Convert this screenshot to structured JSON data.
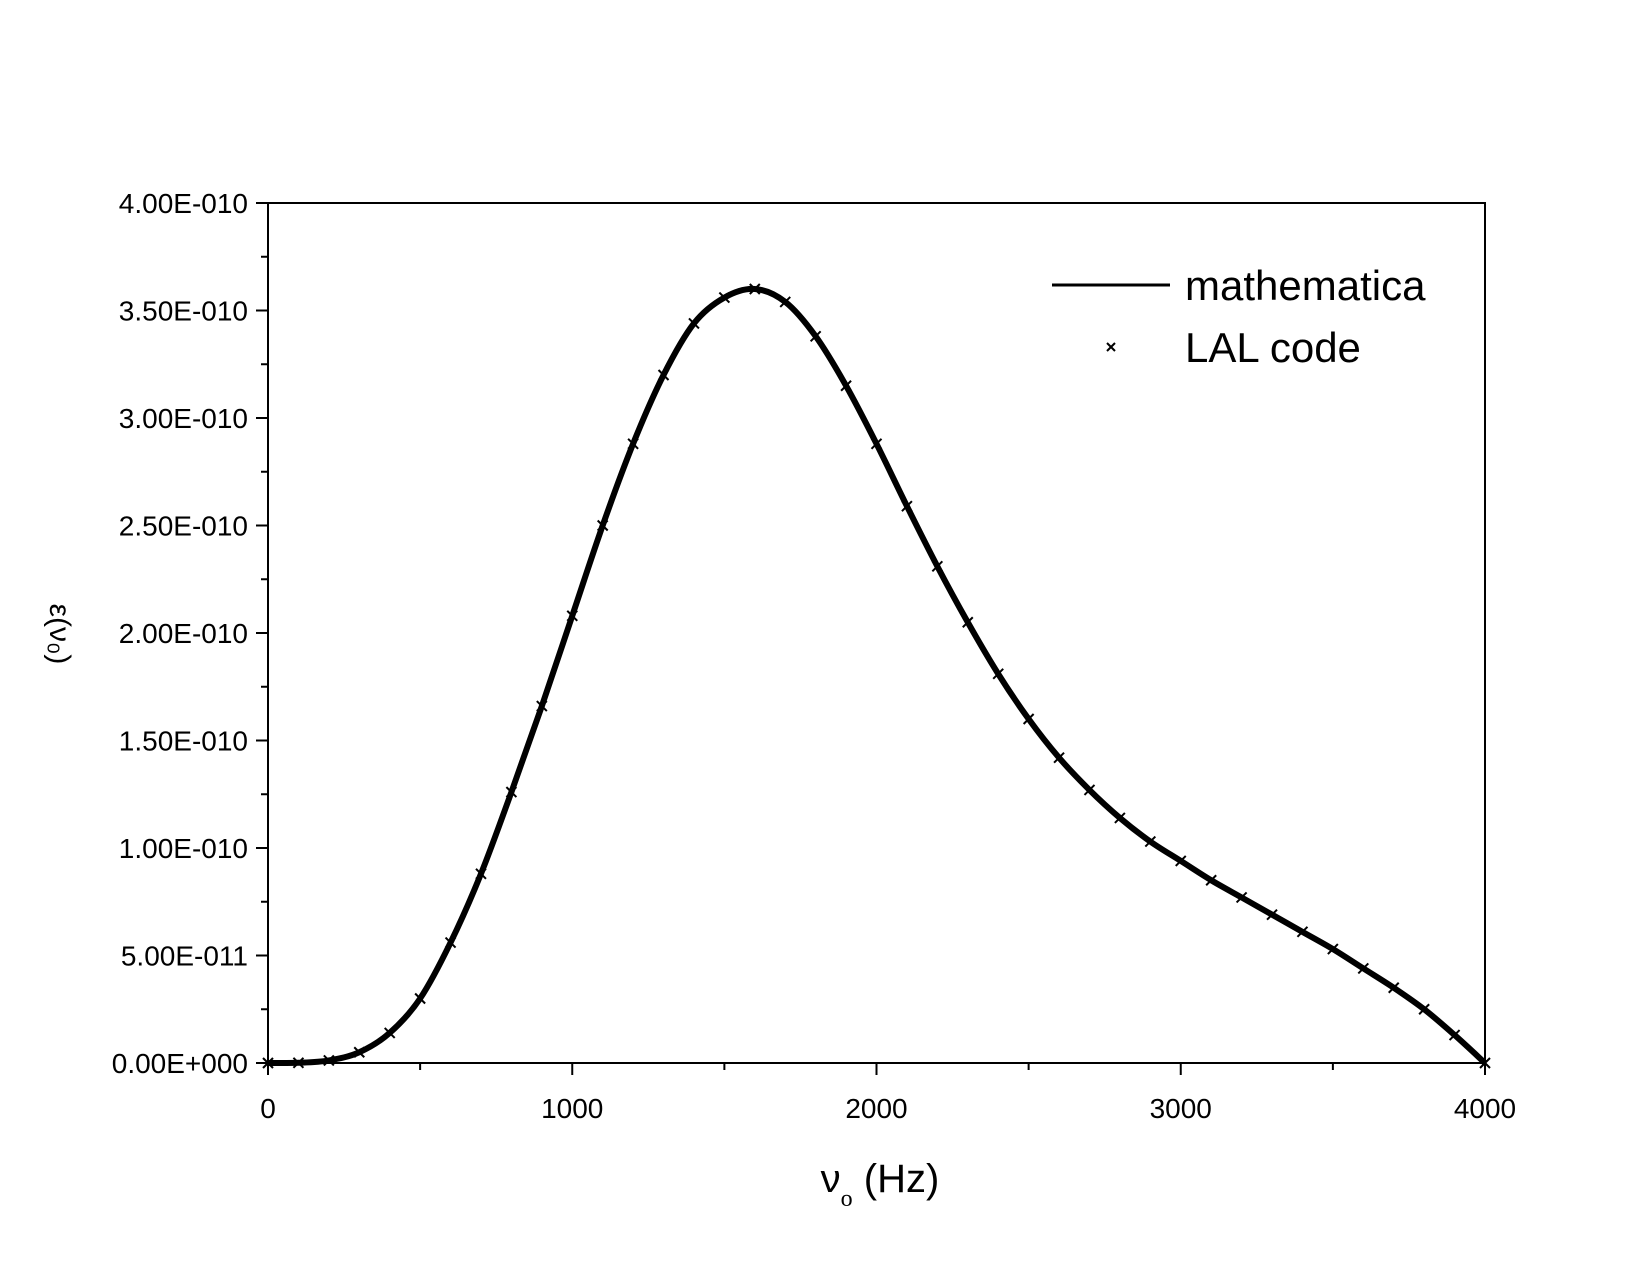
{
  "chart_data": {
    "type": "line",
    "xlabel": "ν",
    "xlabel_sub": "o",
    "xlabel_units": " (Hz)",
    "ylabel": "ε(ν₀)",
    "xlim": [
      0,
      4000
    ],
    "ylim": [
      0,
      4e-10
    ],
    "x_ticks": [
      0,
      1000,
      2000,
      3000,
      4000
    ],
    "x_tick_labels": [
      "0",
      "1000",
      "2000",
      "3000",
      "4000"
    ],
    "y_ticks": [
      0,
      5e-11,
      1e-10,
      1.5e-10,
      2e-10,
      2.5e-10,
      3e-10,
      3.5e-10,
      4e-10
    ],
    "y_tick_labels": [
      "0.00E+000",
      "5.00E-011",
      "1.00E-010",
      "1.50E-010",
      "2.00E-010",
      "2.50E-010",
      "3.00E-010",
      "3.50E-010",
      "4.00E-010"
    ],
    "grid": false,
    "legend_position": "top-right",
    "series": [
      {
        "name": "mathematica",
        "style": "line",
        "color": "#000000",
        "x": [
          0,
          100,
          200,
          300,
          400,
          500,
          600,
          700,
          800,
          900,
          1000,
          1100,
          1200,
          1300,
          1400,
          1500,
          1600,
          1700,
          1800,
          1900,
          2000,
          2100,
          2200,
          2300,
          2400,
          2500,
          2600,
          2700,
          2800,
          2900,
          3000,
          3100,
          3200,
          3300,
          3400,
          3500,
          3600,
          3700,
          3800,
          3900,
          4000
        ],
        "y": [
          0,
          1e-13,
          1.2e-12,
          5e-12,
          1.4e-11,
          3e-11,
          5.6e-11,
          8.8e-11,
          1.26e-10,
          1.66e-10,
          2.08e-10,
          2.5e-10,
          2.88e-10,
          3.2e-10,
          3.44e-10,
          3.56e-10,
          3.6e-10,
          3.54e-10,
          3.38e-10,
          3.15e-10,
          2.88e-10,
          2.59e-10,
          2.31e-10,
          2.05e-10,
          1.81e-10,
          1.6e-10,
          1.42e-10,
          1.27e-10,
          1.14e-10,
          1.03e-10,
          9.4e-11,
          8.5e-11,
          7.7e-11,
          6.9e-11,
          6.1e-11,
          5.3e-11,
          4.4e-11,
          3.5e-11,
          2.5e-11,
          1.3e-11,
          0
        ]
      },
      {
        "name": "LAL code",
        "style": "markers",
        "marker": "x",
        "color": "#000000",
        "x": [
          0,
          100,
          200,
          300,
          400,
          500,
          600,
          700,
          800,
          900,
          1000,
          1100,
          1200,
          1300,
          1400,
          1500,
          1600,
          1700,
          1800,
          1900,
          2000,
          2100,
          2200,
          2300,
          2400,
          2500,
          2600,
          2700,
          2800,
          2900,
          3000,
          3100,
          3200,
          3300,
          3400,
          3500,
          3600,
          3700,
          3800,
          3900,
          4000
        ],
        "y": [
          0,
          1e-13,
          1.2e-12,
          5e-12,
          1.4e-11,
          3e-11,
          5.6e-11,
          8.8e-11,
          1.26e-10,
          1.66e-10,
          2.08e-10,
          2.5e-10,
          2.88e-10,
          3.2e-10,
          3.44e-10,
          3.56e-10,
          3.6e-10,
          3.54e-10,
          3.38e-10,
          3.15e-10,
          2.88e-10,
          2.59e-10,
          2.31e-10,
          2.05e-10,
          1.81e-10,
          1.6e-10,
          1.42e-10,
          1.27e-10,
          1.14e-10,
          1.03e-10,
          9.4e-11,
          8.5e-11,
          7.7e-11,
          6.9e-11,
          6.1e-11,
          5.3e-11,
          4.4e-11,
          3.5e-11,
          2.5e-11,
          1.3e-11,
          0
        ]
      }
    ]
  }
}
